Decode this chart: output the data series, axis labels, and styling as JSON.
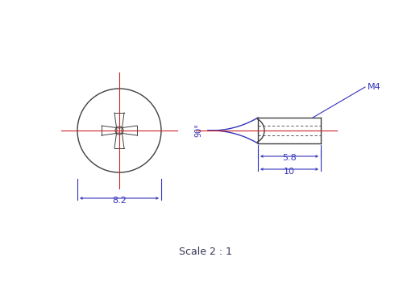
{
  "bg_color": "#ffffff",
  "line_color_blue": "#3333bb",
  "line_color_black": "#404040",
  "line_color_red": "#cc2222",
  "line_color_dim": "#3333bb",
  "scale_text": "Scale 2 : 1",
  "dim_82": "8.2",
  "dim_10": "10",
  "dim_58": "5.8",
  "dim_90": "90°",
  "dim_M4": "M4"
}
